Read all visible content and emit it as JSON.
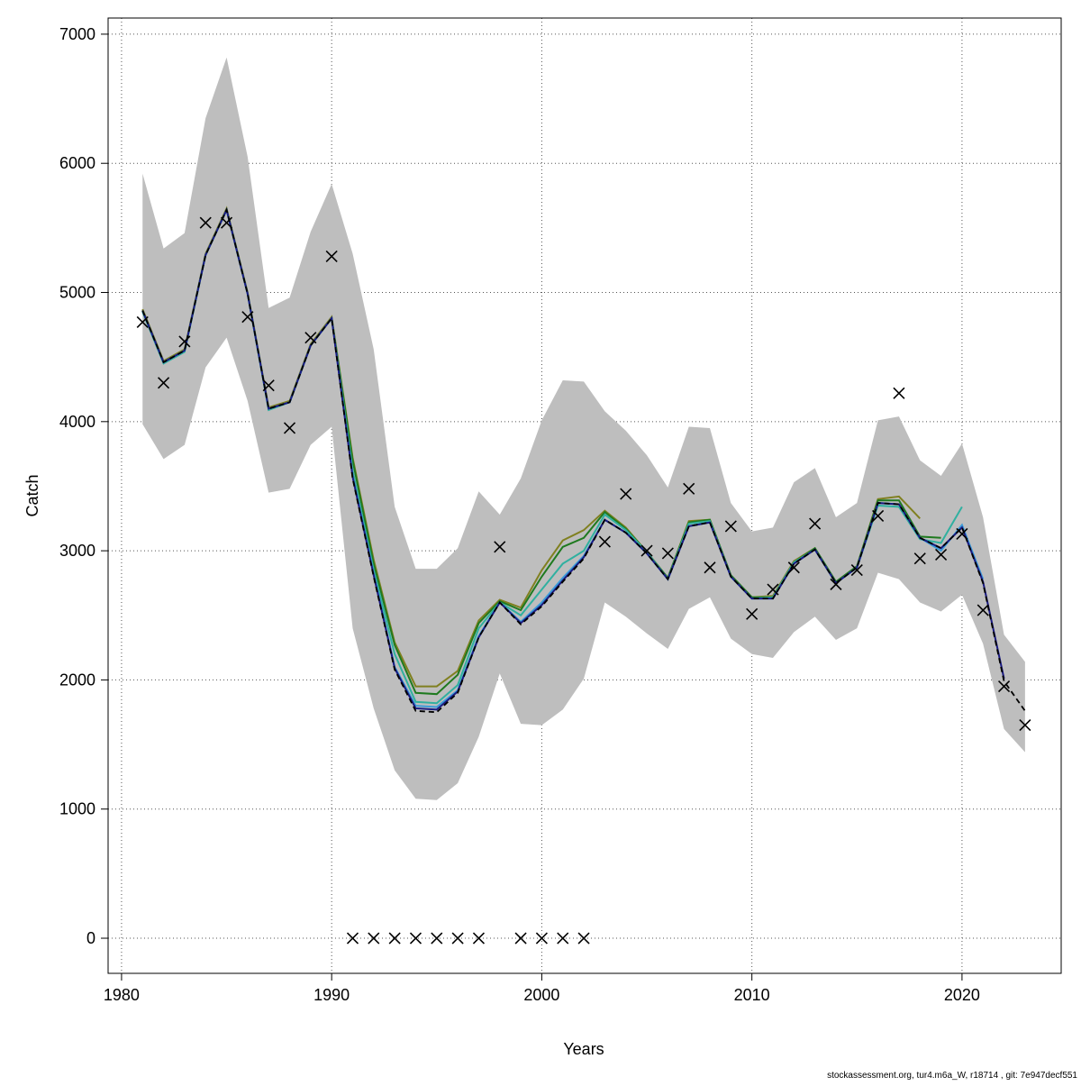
{
  "chart_data": {
    "type": "line",
    "x_label": "Years",
    "y_label": "Catch",
    "footer": "stockassessment.org, tur4.m6a_W, r18714 , git: 7e947decf551",
    "x": [
      1981,
      1982,
      1983,
      1984,
      1985,
      1986,
      1987,
      1988,
      1989,
      1990,
      1991,
      1992,
      1993,
      1994,
      1995,
      1996,
      1997,
      1998,
      1999,
      2000,
      2001,
      2002,
      2003,
      2004,
      2005,
      2006,
      2007,
      2008,
      2009,
      2010,
      2011,
      2012,
      2013,
      2014,
      2015,
      2016,
      2017,
      2018,
      2019,
      2020,
      2021,
      2022,
      2023
    ],
    "xlim": [
      1979.36,
      2024.72
    ],
    "ylim": [
      -272,
      7125
    ],
    "xticks": [
      1980,
      1990,
      2000,
      2010,
      2020
    ],
    "yticks": [
      0,
      1000,
      2000,
      3000,
      4000,
      5000,
      6000,
      7000
    ],
    "grid": true,
    "band": {
      "color": "#bebebe",
      "upper": [
        5920,
        5340,
        5460,
        6350,
        6820,
        6050,
        4880,
        4960,
        5470,
        5840,
        5300,
        4560,
        3340,
        2860,
        2860,
        3020,
        3460,
        3280,
        3560,
        4010,
        4320,
        4310,
        4080,
        3930,
        3740,
        3490,
        3960,
        3950,
        3370,
        3150,
        3180,
        3530,
        3640,
        3260,
        3370,
        4010,
        4040,
        3700,
        3580,
        3830,
        3260,
        2350,
        2140
      ],
      "lower": [
        3980,
        3710,
        3820,
        4420,
        4650,
        4160,
        3450,
        3480,
        3820,
        3960,
        2400,
        1780,
        1300,
        1080,
        1070,
        1200,
        1560,
        2050,
        1660,
        1650,
        1770,
        2010,
        2600,
        2490,
        2360,
        2240,
        2550,
        2640,
        2320,
        2200,
        2170,
        2370,
        2490,
        2310,
        2400,
        2830,
        2780,
        2600,
        2530,
        2660,
        2280,
        1620,
        1440
      ]
    },
    "series": [
      {
        "color": "#808020",
        "values": [
          4870,
          4470,
          4560,
          5300,
          5650,
          5000,
          4110,
          4160,
          4600,
          4810,
          3720,
          2930,
          2290,
          1950,
          1950,
          2070,
          2460,
          2620,
          2560,
          2850,
          3080,
          3160,
          3310,
          3180,
          2990,
          2790,
          3230,
          3240,
          2810,
          2640,
          2650,
          2920,
          3020,
          2760,
          2880,
          3400,
          3420,
          3250,
          null,
          null,
          null,
          null,
          null
        ]
      },
      {
        "color": "#1f7a1f",
        "values": [
          4860,
          4460,
          4550,
          5290,
          5640,
          4990,
          4100,
          4150,
          4590,
          4800,
          3700,
          2900,
          2270,
          1900,
          1890,
          2040,
          2440,
          2610,
          2540,
          2800,
          3030,
          3100,
          3300,
          3170,
          2990,
          2790,
          3220,
          3240,
          2810,
          2640,
          2640,
          2910,
          3020,
          2760,
          2880,
          3390,
          3390,
          3110,
          3100,
          null,
          null,
          null,
          null
        ]
      },
      {
        "color": "#30b0a0",
        "values": [
          4850,
          4450,
          4540,
          5290,
          5640,
          4990,
          4090,
          4150,
          4590,
          4800,
          3620,
          2850,
          2200,
          1830,
          1820,
          1960,
          2400,
          2600,
          2500,
          2700,
          2900,
          3000,
          3280,
          3160,
          2990,
          2780,
          3210,
          3230,
          2800,
          2630,
          2640,
          2910,
          3010,
          2750,
          2870,
          3350,
          3340,
          3090,
          3060,
          3340,
          null,
          null,
          null
        ]
      },
      {
        "color": "#3a9ad9",
        "values": [
          4860,
          4460,
          4550,
          5290,
          5640,
          4990,
          4100,
          4150,
          4590,
          4800,
          3580,
          2820,
          2100,
          1800,
          1790,
          1920,
          2340,
          2600,
          2450,
          2600,
          2790,
          2960,
          3240,
          3140,
          2980,
          2780,
          3190,
          3220,
          2800,
          2630,
          2630,
          2900,
          3010,
          2750,
          2870,
          3370,
          3360,
          3100,
          3000,
          3200,
          2780,
          null,
          null
        ]
      },
      {
        "color": "#1a1a80",
        "values": [
          4860,
          4460,
          4550,
          5290,
          5640,
          4990,
          4100,
          4150,
          4590,
          4800,
          3570,
          2810,
          2090,
          1780,
          1770,
          1910,
          2330,
          2600,
          2440,
          2580,
          2770,
          2950,
          3240,
          3140,
          2980,
          2780,
          3190,
          3220,
          2800,
          2630,
          2630,
          2900,
          3010,
          2750,
          2870,
          3370,
          3360,
          3100,
          3020,
          3180,
          2760,
          2010,
          null
        ]
      },
      {
        "color": "#000000",
        "dashed": true,
        "values": [
          4860,
          4460,
          4550,
          5290,
          5640,
          4990,
          4100,
          4150,
          4590,
          4800,
          3560,
          2800,
          2080,
          1760,
          1750,
          1900,
          2330,
          2600,
          2430,
          2570,
          2760,
          2940,
          3240,
          3140,
          2980,
          2780,
          3190,
          3220,
          2800,
          2630,
          2630,
          2900,
          3010,
          2750,
          2870,
          3370,
          3360,
          3100,
          3020,
          3180,
          2750,
          1990,
          1760
        ]
      }
    ],
    "observations": {
      "color": "#000000",
      "marker": "x",
      "values": [
        4770,
        4300,
        4620,
        5540,
        5540,
        4810,
        4280,
        3950,
        4650,
        5280,
        0,
        0,
        0,
        0,
        0,
        0,
        0,
        3030,
        0,
        0,
        0,
        0,
        3070,
        3440,
        3000,
        2980,
        3480,
        2870,
        3190,
        2510,
        2700,
        2870,
        3210,
        2740,
        2850,
        3270,
        4220,
        2940,
        2970,
        3130,
        2540,
        1950,
        1650
      ]
    }
  }
}
